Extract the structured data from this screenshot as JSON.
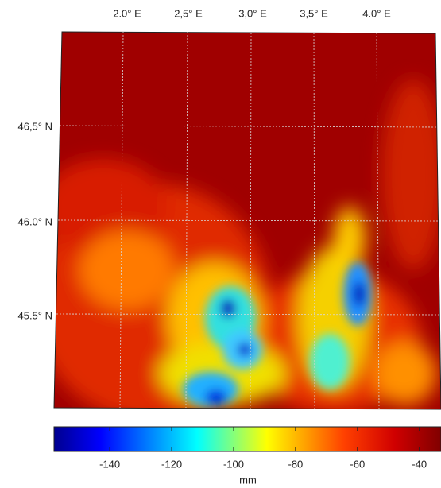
{
  "map": {
    "lon_labels": [
      "2.0° E",
      "2,5° E",
      "3,0° E",
      "3,5° E",
      "4.0° E"
    ],
    "lat_labels": [
      "46,5° N",
      "46.0° N",
      "45.5° N"
    ],
    "colorbar": {
      "range": [
        -158,
        -33
      ],
      "ticks": [
        -140,
        -120,
        -100,
        -80,
        -60,
        -40
      ],
      "label": "mm"
    }
  }
}
